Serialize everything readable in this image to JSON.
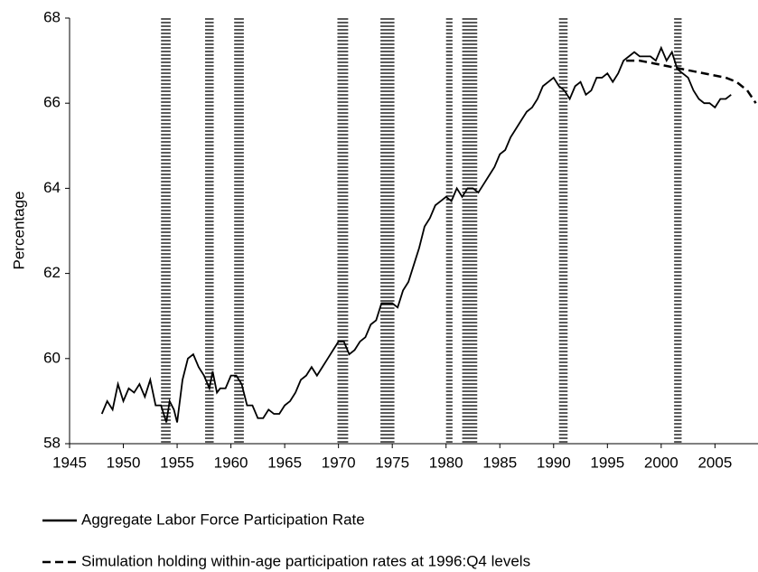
{
  "chart_data": {
    "type": "line",
    "y_label": "Percentage",
    "xlim": [
      1945,
      2009
    ],
    "ylim": [
      58,
      68
    ],
    "xticks": [
      1945,
      1950,
      1955,
      1960,
      1965,
      1970,
      1975,
      1980,
      1985,
      1990,
      1995,
      2000,
      2005
    ],
    "yticks": [
      58,
      60,
      62,
      64,
      66,
      68
    ],
    "recessions": [
      [
        1953.5,
        1954.4
      ],
      [
        1957.6,
        1958.4
      ],
      [
        1960.3,
        1961.2
      ],
      [
        1969.9,
        1970.9
      ],
      [
        1973.9,
        1975.2
      ],
      [
        1980.0,
        1980.6
      ],
      [
        1981.5,
        1982.9
      ],
      [
        1990.5,
        1991.3
      ],
      [
        2001.2,
        2001.9
      ]
    ],
    "series": [
      {
        "name": "Aggregate Labor Force Participation Rate",
        "color": "#000000",
        "dash": false,
        "x": [
          1948,
          1948.5,
          1949,
          1949.5,
          1950,
          1950.5,
          1951,
          1951.5,
          1952,
          1952.5,
          1953,
          1953.5,
          1954,
          1954.3,
          1954.7,
          1955,
          1955.5,
          1956,
          1956.5,
          1957,
          1957.5,
          1958,
          1958.3,
          1958.7,
          1959,
          1959.5,
          1960,
          1960.5,
          1961,
          1961.5,
          1962,
          1962.5,
          1963,
          1963.5,
          1964,
          1964.5,
          1965,
          1965.5,
          1966,
          1966.5,
          1967,
          1967.5,
          1968,
          1968.5,
          1969,
          1969.5,
          1970,
          1970.5,
          1971,
          1971.5,
          1972,
          1972.5,
          1973,
          1973.5,
          1974,
          1974.5,
          1975,
          1975.5,
          1976,
          1976.5,
          1977,
          1977.5,
          1978,
          1978.5,
          1979,
          1979.5,
          1980,
          1980.5,
          1981,
          1981.5,
          1982,
          1982.5,
          1983,
          1983.5,
          1984,
          1984.5,
          1985,
          1985.5,
          1986,
          1986.5,
          1987,
          1987.5,
          1988,
          1988.5,
          1989,
          1989.5,
          1990,
          1990.5,
          1991,
          1991.5,
          1992,
          1992.5,
          1993,
          1993.5,
          1994,
          1994.5,
          1995,
          1995.5,
          1996,
          1996.5,
          1997,
          1997.5,
          1998,
          1998.5,
          1999,
          1999.5,
          2000,
          2000.5,
          2001,
          2001.5,
          2002,
          2002.5,
          2003,
          2003.5,
          2004,
          2004.5,
          2005,
          2005.5,
          2006,
          2006.5
        ],
        "values": [
          58.7,
          59.0,
          58.8,
          59.4,
          59.0,
          59.3,
          59.2,
          59.4,
          59.1,
          59.5,
          58.9,
          58.9,
          58.5,
          59.0,
          58.8,
          58.5,
          59.5,
          60.0,
          60.1,
          59.8,
          59.6,
          59.3,
          59.7,
          59.2,
          59.3,
          59.3,
          59.6,
          59.6,
          59.4,
          58.9,
          58.9,
          58.6,
          58.6,
          58.8,
          58.7,
          58.7,
          58.9,
          59.0,
          59.2,
          59.5,
          59.6,
          59.8,
          59.6,
          59.8,
          60.0,
          60.2,
          60.4,
          60.4,
          60.1,
          60.2,
          60.4,
          60.5,
          60.8,
          60.9,
          61.3,
          61.3,
          61.3,
          61.2,
          61.6,
          61.8,
          62.2,
          62.6,
          63.1,
          63.3,
          63.6,
          63.7,
          63.8,
          63.7,
          64.0,
          63.8,
          64.0,
          64.0,
          63.9,
          64.1,
          64.3,
          64.5,
          64.8,
          64.9,
          65.2,
          65.4,
          65.6,
          65.8,
          65.9,
          66.1,
          66.4,
          66.5,
          66.6,
          66.4,
          66.3,
          66.1,
          66.4,
          66.5,
          66.2,
          66.3,
          66.6,
          66.6,
          66.7,
          66.5,
          66.7,
          67.0,
          67.1,
          67.2,
          67.1,
          67.1,
          67.1,
          67.0,
          67.3,
          67.0,
          67.2,
          66.8,
          66.7,
          66.6,
          66.3,
          66.1,
          66.0,
          66.0,
          65.9,
          66.1,
          66.1,
          66.2
        ]
      },
      {
        "name": "Simulation holding within-age participation rates at 1996:Q4 levels",
        "color": "#000000",
        "dash": true,
        "x": [
          1996.75,
          1998,
          2000,
          2002,
          2004,
          2006,
          2007,
          2008,
          2008.8
        ],
        "values": [
          67.0,
          67.0,
          66.9,
          66.8,
          66.7,
          66.6,
          66.5,
          66.3,
          66.0
        ]
      }
    ]
  }
}
